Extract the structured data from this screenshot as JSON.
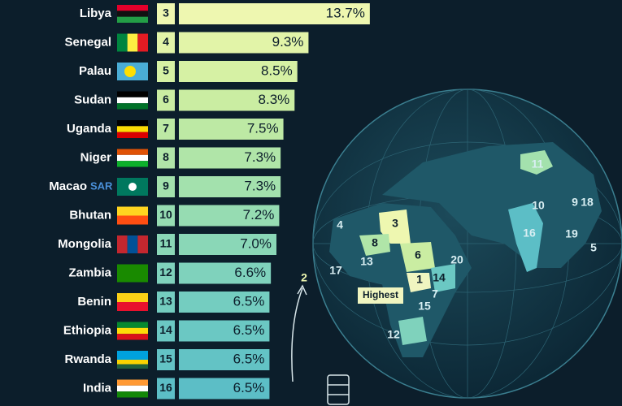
{
  "chart_data": {
    "type": "hbar",
    "categories": [
      "Libya",
      "Senegal",
      "Palau",
      "Sudan",
      "Uganda",
      "Niger",
      "Macao",
      "Bhutan",
      "Mongolia",
      "Zambia",
      "Benin",
      "Ethiopia",
      "Rwanda",
      "India"
    ],
    "category_note": "SAR",
    "ranks": [
      3,
      4,
      5,
      6,
      7,
      8,
      9,
      10,
      11,
      12,
      13,
      14,
      15,
      16
    ],
    "values": [
      13.7,
      9.3,
      8.5,
      8.3,
      7.5,
      7.3,
      7.3,
      7.2,
      7.0,
      6.6,
      6.5,
      6.5,
      6.5,
      6.5
    ],
    "value_labels": [
      "13.7%",
      "9.3%",
      "8.5%",
      "8.3%",
      "7.5%",
      "7.3%",
      "7.3%",
      "7.2%",
      "7.0%",
      "6.6%",
      "6.5%",
      "6.5%",
      "6.5%",
      "6.5%"
    ],
    "colors": [
      "#eef7b0",
      "#e2f4a8",
      "#d6f1a4",
      "#caeda2",
      "#bde9a4",
      "#b0e5a8",
      "#a3e1ad",
      "#96dcb2",
      "#8ad7b7",
      "#7fd2bc",
      "#74cdc0",
      "#6bc8c3",
      "#63c3c5",
      "#5cbec6"
    ],
    "xlim": [
      0,
      14
    ],
    "map_labels": [
      "11",
      "10",
      "9",
      "18",
      "3",
      "4",
      "8",
      "6",
      "16",
      "19",
      "5",
      "17",
      "13",
      "20",
      "2",
      "1",
      "14",
      "7",
      "15",
      "12",
      "Highest"
    ]
  }
}
